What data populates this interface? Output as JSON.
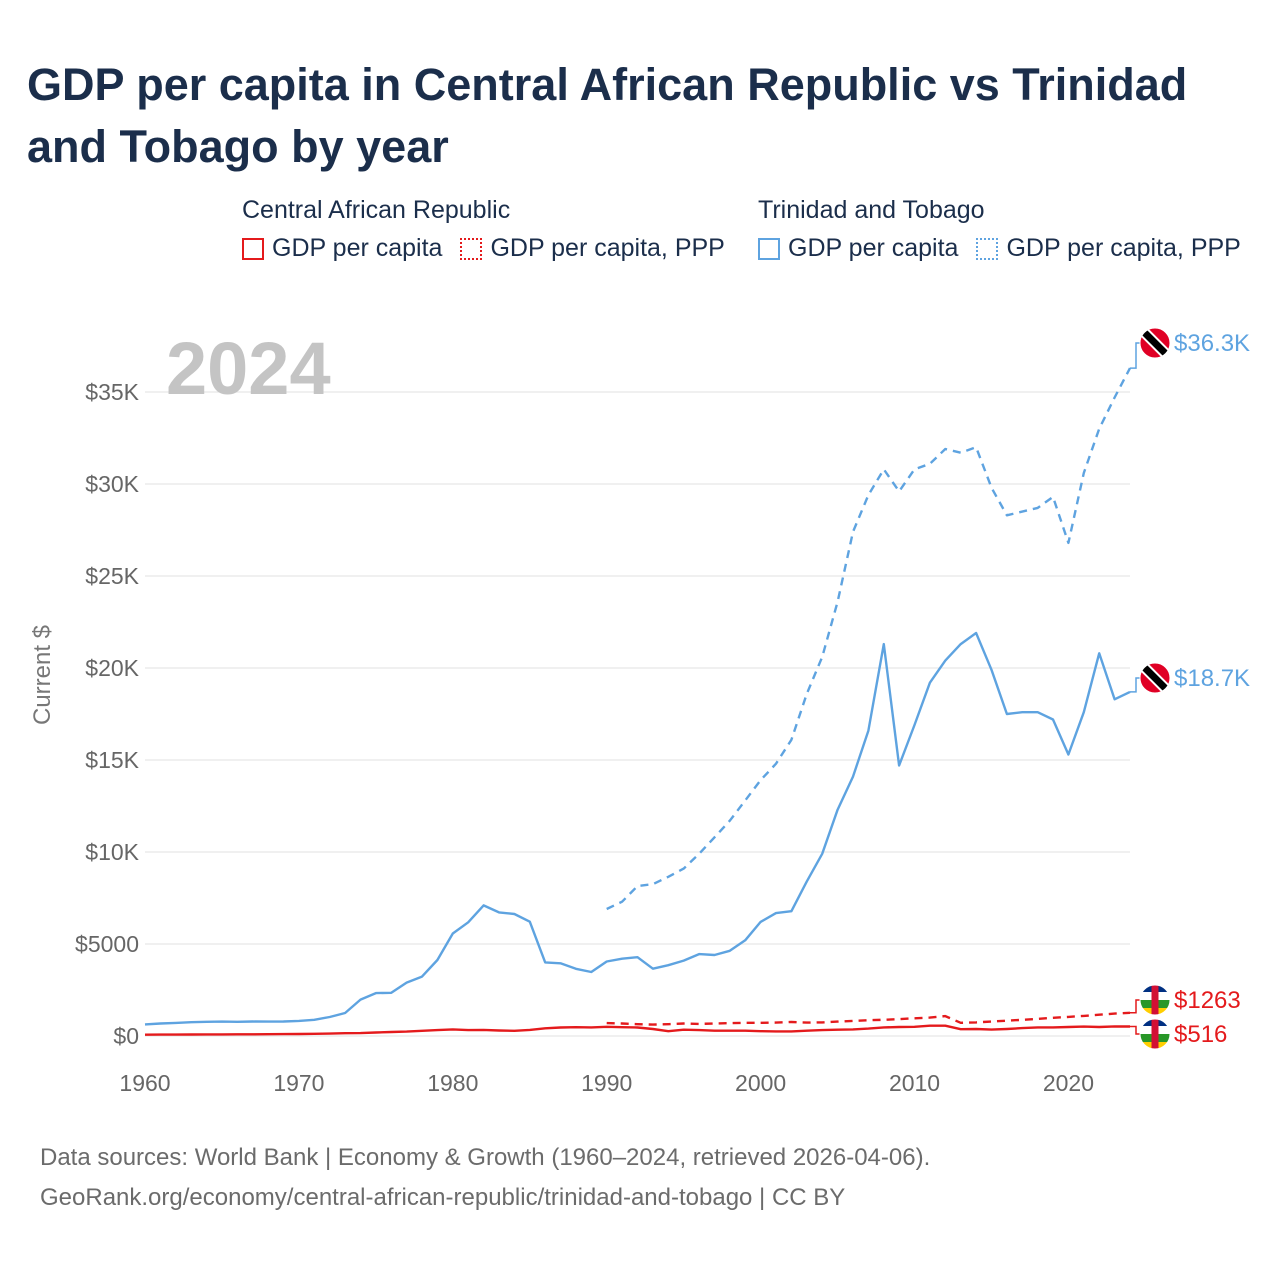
{
  "title": "GDP per capita in Central African Republic vs Trinidad and Tobago by year",
  "legend": {
    "groups": [
      {
        "name": "Central African Republic",
        "items": [
          "GDP per capita",
          "GDP per capita, PPP"
        ]
      },
      {
        "name": "Trinidad and Tobago",
        "items": [
          "GDP per capita",
          "GDP per capita, PPP"
        ]
      }
    ]
  },
  "footer": {
    "line1": "Data sources: World Bank | Economy & Growth (1960–2024, retrieved 2026-04-06).",
    "line2": "GeoRank.org/economy/central-african-republic/trinidad-and-tobago | CC BY"
  },
  "colors": {
    "car": "#e41a1c",
    "tt": "#5ea3e0",
    "grid": "#e6e6e6"
  },
  "chart_data": {
    "type": "line",
    "title": "GDP per capita in Central African Republic vs Trinidad and Tobago by year",
    "year_label": "2024",
    "xlabel": "",
    "ylabel": "Current $",
    "xlim": [
      1960,
      2024
    ],
    "ylim": [
      0,
      37500
    ],
    "x_ticks": [
      1960,
      1970,
      1980,
      1990,
      2000,
      2010,
      2020
    ],
    "x_tick_labels": [
      "1960",
      "1970",
      "1980",
      "1990",
      "2000",
      "2010",
      "2020"
    ],
    "y_ticks": [
      0,
      5000,
      10000,
      15000,
      20000,
      25000,
      30000,
      35000
    ],
    "y_tick_labels": [
      "$0",
      "$5000",
      "$10K",
      "$15K",
      "$20K",
      "$25K",
      "$30K",
      "$35K"
    ],
    "grid": true,
    "end_labels": {
      "tt_ppp": "$36.3K",
      "tt_gdp": "$18.7K",
      "car_ppp": "$1263",
      "car_gdp": "$516"
    },
    "series": [
      {
        "key": "tt_ppp",
        "name": "Trinidad and Tobago GDP per capita, PPP",
        "style": "dashed",
        "color": "#5ea3e0",
        "x": [
          1990,
          1991,
          1992,
          1993,
          1994,
          1995,
          1996,
          1997,
          1998,
          1999,
          2000,
          2001,
          2002,
          2003,
          2004,
          2005,
          2006,
          2007,
          2008,
          2009,
          2010,
          2011,
          2012,
          2013,
          2014,
          2015,
          2016,
          2017,
          2018,
          2019,
          2020,
          2021,
          2022,
          2023,
          2024
        ],
        "values": [
          6900,
          7300,
          8150,
          8250,
          8650,
          9100,
          9900,
          10800,
          11700,
          12800,
          13900,
          14800,
          16100,
          18600,
          20600,
          23600,
          27400,
          29400,
          30800,
          29600,
          30800,
          31100,
          31900,
          31700,
          32000,
          29800,
          28300,
          28500,
          28700,
          29300,
          26800,
          30600,
          33000,
          34700,
          36300
        ]
      },
      {
        "key": "tt_gdp",
        "name": "Trinidad and Tobago GDP per capita",
        "style": "solid",
        "color": "#5ea3e0",
        "x": [
          1960,
          1961,
          1962,
          1963,
          1964,
          1965,
          1966,
          1967,
          1968,
          1969,
          1970,
          1971,
          1972,
          1973,
          1974,
          1975,
          1976,
          1977,
          1978,
          1979,
          1980,
          1981,
          1982,
          1983,
          1984,
          1985,
          1986,
          1987,
          1988,
          1989,
          1990,
          1991,
          1992,
          1993,
          1994,
          1995,
          1996,
          1997,
          1998,
          1999,
          2000,
          2001,
          2002,
          2003,
          2004,
          2005,
          2006,
          2007,
          2008,
          2009,
          2010,
          2011,
          2012,
          2013,
          2014,
          2015,
          2016,
          2017,
          2018,
          2019,
          2020,
          2021,
          2022,
          2023,
          2024
        ],
        "values": [
          630,
          680,
          710,
          750,
          770,
          780,
          770,
          790,
          780,
          790,
          820,
          880,
          1030,
          1250,
          1980,
          2330,
          2350,
          2900,
          3230,
          4130,
          5570,
          6180,
          7100,
          6720,
          6630,
          6210,
          4000,
          3950,
          3650,
          3480,
          4050,
          4200,
          4280,
          3660,
          3850,
          4100,
          4450,
          4400,
          4630,
          5200,
          6200,
          6680,
          6780,
          8400,
          9900,
          12300,
          14100,
          16600,
          21300,
          14700,
          16900,
          19200,
          20400,
          21300,
          21900,
          19900,
          17500,
          17600,
          17600,
          17200,
          15300,
          17600,
          20800,
          18300,
          18700
        ]
      },
      {
        "key": "car_ppp",
        "name": "Central African Republic GDP per capita, PPP",
        "style": "dashed",
        "color": "#e41a1c",
        "x": [
          1990,
          1991,
          1992,
          1993,
          1994,
          1995,
          1996,
          1997,
          1998,
          1999,
          2000,
          2001,
          2002,
          2003,
          2004,
          2005,
          2006,
          2007,
          2008,
          2009,
          2010,
          2011,
          2012,
          2013,
          2014,
          2015,
          2016,
          2017,
          2018,
          2019,
          2020,
          2021,
          2022,
          2023,
          2024
        ],
        "values": [
          700,
          680,
          640,
          620,
          640,
          680,
          660,
          680,
          700,
          720,
          720,
          730,
          760,
          730,
          740,
          780,
          820,
          860,
          880,
          920,
          960,
          1000,
          1080,
          720,
          740,
          790,
          830,
          880,
          930,
          990,
          1040,
          1090,
          1160,
          1220,
          1263
        ]
      },
      {
        "key": "car_gdp",
        "name": "Central African Republic GDP per capita",
        "style": "solid",
        "color": "#e41a1c",
        "x": [
          1960,
          1961,
          1962,
          1963,
          1964,
          1965,
          1966,
          1967,
          1968,
          1969,
          1970,
          1971,
          1972,
          1973,
          1974,
          1975,
          1976,
          1977,
          1978,
          1979,
          1980,
          1981,
          1982,
          1983,
          1984,
          1985,
          1986,
          1987,
          1988,
          1989,
          1990,
          1991,
          1992,
          1993,
          1994,
          1995,
          1996,
          1997,
          1998,
          1999,
          2000,
          2001,
          2002,
          2003,
          2004,
          2005,
          2006,
          2007,
          2008,
          2009,
          2010,
          2011,
          2012,
          2013,
          2014,
          2015,
          2016,
          2017,
          2018,
          2019,
          2020,
          2021,
          2022,
          2023,
          2024
        ],
        "values": [
          70,
          75,
          78,
          82,
          85,
          88,
          90,
          95,
          100,
          105,
          110,
          120,
          130,
          150,
          160,
          190,
          220,
          240,
          280,
          320,
          360,
          320,
          330,
          300,
          280,
          330,
          420,
          460,
          480,
          470,
          500,
          480,
          460,
          380,
          260,
          340,
          320,
          290,
          290,
          290,
          260,
          250,
          250,
          290,
          320,
          340,
          360,
          400,
          470,
          490,
          500,
          560,
          560,
          370,
          380,
          350,
          380,
          430,
          470,
          470,
          490,
          510,
          490,
          520,
          516
        ]
      }
    ]
  }
}
